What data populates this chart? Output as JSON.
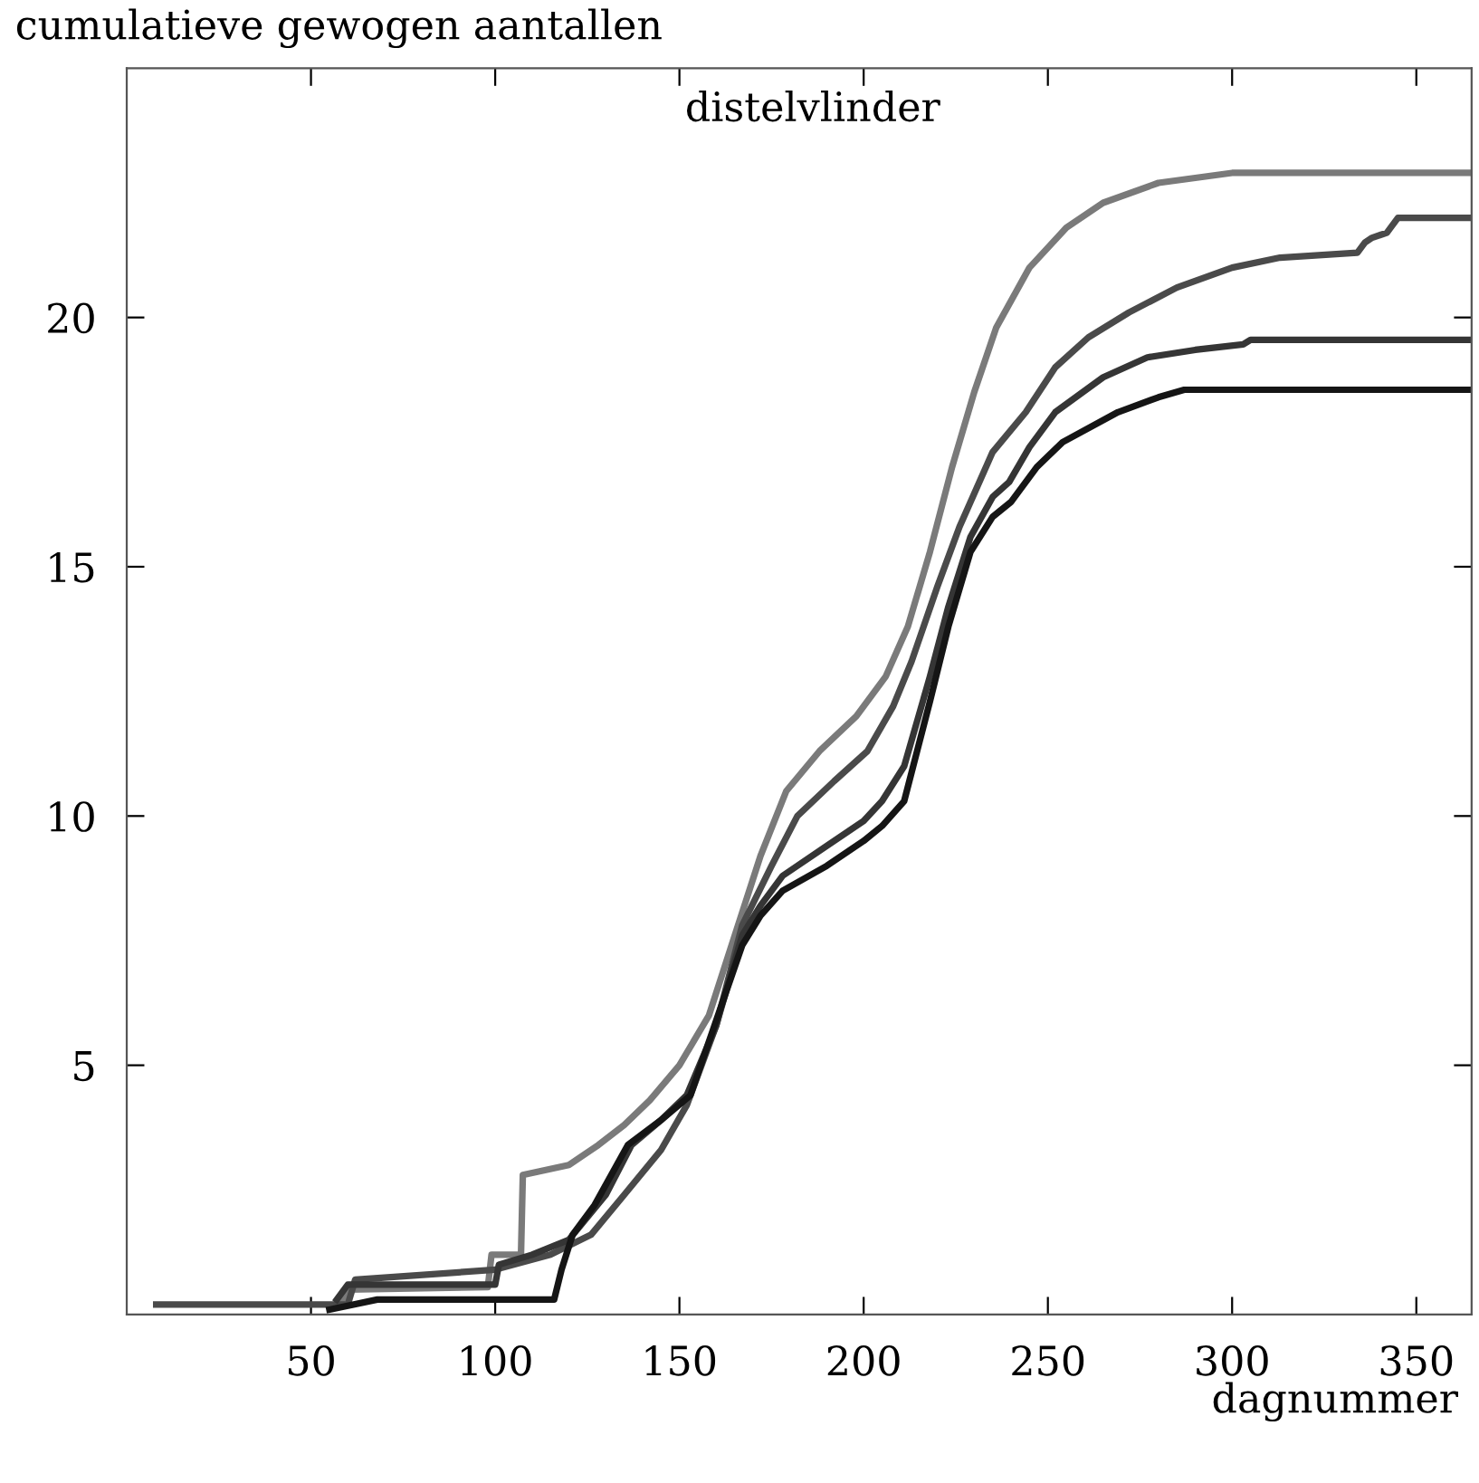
{
  "chart_data": {
    "type": "line",
    "title": "distelvlinder",
    "xlabel": "dagnummer",
    "ylabel": "cumulatieve gewogen aantallen",
    "xlim": [
      0,
      365
    ],
    "ylim": [
      0,
      25
    ],
    "xticks": [
      50,
      100,
      150,
      200,
      250,
      300,
      350
    ],
    "yticks": [
      5,
      10,
      15,
      20
    ],
    "grid": false,
    "marker": "none",
    "line_style": "solid",
    "series": [
      {
        "color": "#7a7a7a",
        "x": [
          58,
          60,
          98,
          99,
          107,
          107.5,
          120,
          128,
          135,
          142,
          150,
          158,
          165,
          172,
          179,
          188,
          198,
          206,
          212,
          218,
          224,
          230,
          236,
          245,
          255,
          265,
          280,
          300,
          365
        ],
        "values": [
          0.2,
          0.5,
          0.55,
          1.2,
          1.2,
          2.8,
          3.0,
          3.4,
          3.8,
          4.3,
          5.0,
          6.0,
          7.6,
          9.2,
          10.5,
          11.3,
          12.0,
          12.8,
          13.8,
          15.3,
          17.0,
          18.5,
          19.8,
          21.0,
          21.8,
          22.3,
          22.7,
          22.9,
          22.9
        ]
      },
      {
        "color": "#4a4a4a",
        "x": [
          8,
          60,
          62,
          100,
          115,
          126,
          135,
          145,
          152,
          160,
          167,
          175,
          182,
          192,
          201,
          208,
          213,
          220,
          226,
          235,
          244,
          252,
          261,
          272,
          285,
          300,
          313,
          334,
          336,
          338,
          342,
          345,
          365
        ],
        "values": [
          0.2,
          0.2,
          0.7,
          0.9,
          1.2,
          1.6,
          2.4,
          3.3,
          4.2,
          5.8,
          7.8,
          9.0,
          10.0,
          10.7,
          11.3,
          12.2,
          13.1,
          14.6,
          15.8,
          17.3,
          18.1,
          19.0,
          19.6,
          20.1,
          20.6,
          21.0,
          21.2,
          21.3,
          21.5,
          21.6,
          21.7,
          22.0,
          22.0
        ]
      },
      {
        "color": "#353535",
        "x": [
          57,
          60,
          100,
          101,
          110,
          120,
          130,
          137,
          145,
          152,
          160,
          167,
          172,
          178,
          190,
          200,
          205,
          211,
          218,
          223,
          229,
          235,
          239.5,
          245,
          252,
          265,
          277,
          290,
          303,
          305,
          365
        ],
        "values": [
          0.3,
          0.6,
          0.6,
          1.0,
          1.2,
          1.5,
          2.4,
          3.4,
          3.9,
          4.4,
          5.8,
          7.6,
          8.2,
          8.8,
          9.4,
          9.9,
          10.3,
          11.0,
          12.8,
          14.2,
          15.6,
          16.4,
          16.7,
          17.4,
          18.1,
          18.8,
          19.2,
          19.35,
          19.46,
          19.55,
          19.55
        ]
      },
      {
        "color": "#151515",
        "x": [
          55,
          68,
          116,
          118,
          121,
          127,
          136,
          145,
          153,
          160,
          167,
          172,
          178,
          190,
          200,
          205,
          211,
          218,
          223,
          229,
          235,
          240,
          247,
          254,
          269,
          280,
          287,
          365
        ],
        "values": [
          0.1,
          0.3,
          0.3,
          0.9,
          1.6,
          2.2,
          3.4,
          3.9,
          4.4,
          5.9,
          7.4,
          8.0,
          8.5,
          9.0,
          9.5,
          9.8,
          10.3,
          12.3,
          13.8,
          15.3,
          16.0,
          16.3,
          17.0,
          17.5,
          18.1,
          18.4,
          18.55,
          18.55
        ]
      }
    ]
  }
}
